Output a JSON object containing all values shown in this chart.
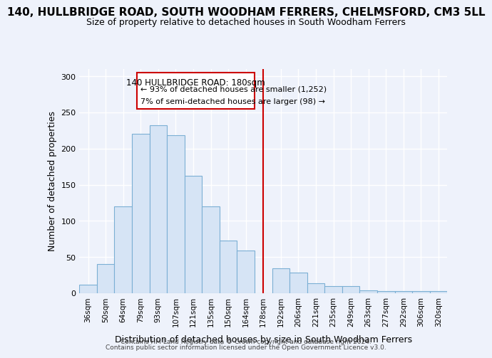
{
  "title": "140, HULLBRIDGE ROAD, SOUTH WOODHAM FERRERS, CHELMSFORD, CM3 5LL",
  "subtitle": "Size of property relative to detached houses in South Woodham Ferrers",
  "xlabel": "Distribution of detached houses by size in South Woodham Ferrers",
  "ylabel": "Number of detached properties",
  "categories": [
    "36sqm",
    "50sqm",
    "64sqm",
    "79sqm",
    "93sqm",
    "107sqm",
    "121sqm",
    "135sqm",
    "150sqm",
    "164sqm",
    "178sqm",
    "192sqm",
    "206sqm",
    "221sqm",
    "235sqm",
    "249sqm",
    "263sqm",
    "277sqm",
    "292sqm",
    "306sqm",
    "320sqm"
  ],
  "values": [
    12,
    40,
    120,
    220,
    232,
    218,
    162,
    120,
    73,
    59,
    0,
    34,
    29,
    14,
    10,
    10,
    4,
    3,
    3,
    3,
    3
  ],
  "bar_color": "#d6e4f5",
  "bar_edge_color": "#7bafd4",
  "vline_index": 10,
  "vline_color": "#cc0000",
  "annotation_title": "140 HULLBRIDGE ROAD: 180sqm",
  "annotation_line1": "← 93% of detached houses are smaller (1,252)",
  "annotation_line2": "7% of semi-detached houses are larger (98) →",
  "annotation_box_color": "#cc0000",
  "ylim": [
    0,
    310
  ],
  "yticks": [
    0,
    50,
    100,
    150,
    200,
    250,
    300
  ],
  "footer_line1": "Contains HM Land Registry data © Crown copyright and database right 2024.",
  "footer_line2": "Contains public sector information licensed under the Open Government Licence v3.0.",
  "bg_color": "#eef2fb",
  "grid_color": "#ffffff",
  "title_fontsize": 11,
  "subtitle_fontsize": 9
}
